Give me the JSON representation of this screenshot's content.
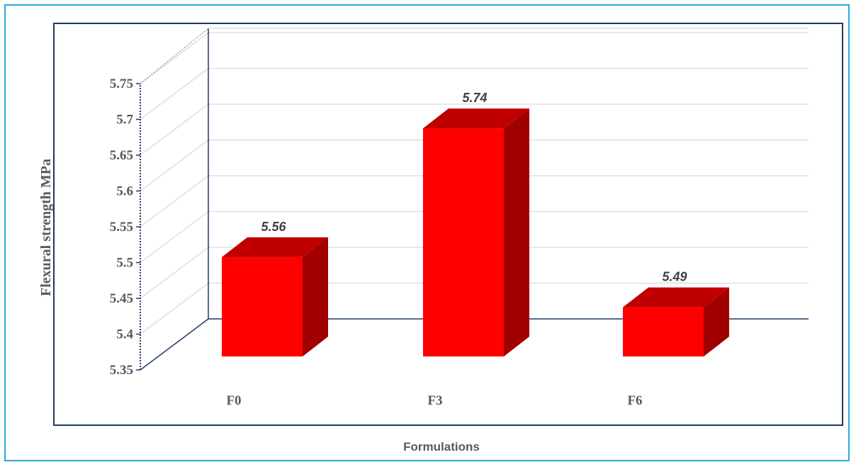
{
  "chart_data": {
    "type": "bar",
    "categories": [
      "F0",
      "F3",
      "F6"
    ],
    "values": [
      5.56,
      5.74,
      5.49
    ],
    "data_labels": [
      "5.56",
      "5.74",
      "5.49"
    ],
    "title": "",
    "xlabel": "Formulations",
    "ylabel": "Flexural strength MPa",
    "ylim": [
      5.35,
      5.75
    ],
    "yticks": [
      "5.35",
      "5.4",
      "5.45",
      "5.5",
      "5.55",
      "5.6",
      "5.65",
      "5.7",
      "5.75"
    ],
    "grid": true,
    "legend": "none",
    "style": "3d-column"
  },
  "colors": {
    "bar_front": "#ff0000",
    "bar_top": "#c00000",
    "bar_side": "#a00000",
    "frame_border": "#29a9d6",
    "axis": "#1f3864"
  }
}
